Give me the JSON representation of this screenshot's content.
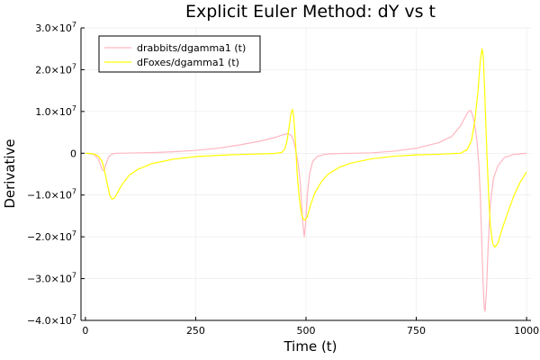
{
  "chart_data": {
    "type": "line",
    "title": "Explicit Euler Method: dY vs t",
    "xlabel": "Time (t)",
    "ylabel": "Derivative",
    "xlim": [
      -10,
      1010
    ],
    "ylim": [
      -40000000,
      30000000
    ],
    "x_ticks": [
      0,
      250,
      500,
      750,
      1000
    ],
    "x_tick_labels": [
      "0",
      "250",
      "500",
      "750",
      "1000"
    ],
    "y_ticks": [
      -40000000,
      -30000000,
      -20000000,
      -10000000,
      0,
      10000000,
      20000000,
      30000000
    ],
    "y_tick_labels": [
      {
        "mantissa": "−4.0×10",
        "exp": "7"
      },
      {
        "mantissa": "−3.0×10",
        "exp": "7"
      },
      {
        "mantissa": "−2.0×10",
        "exp": "7"
      },
      {
        "mantissa": "−1.0×10",
        "exp": "7"
      },
      {
        "mantissa": "0",
        "exp": ""
      },
      {
        "mantissa": "1.0×10",
        "exp": "7"
      },
      {
        "mantissa": "2.0×10",
        "exp": "7"
      },
      {
        "mantissa": "3.0×10",
        "exp": "7"
      }
    ],
    "grid": true,
    "legend_position": "top-left",
    "series": [
      {
        "name": "drabbits/dgamma1 (t)",
        "color": "#ffb6c1",
        "points": [
          [
            0,
            0
          ],
          [
            10,
            -100000
          ],
          [
            20,
            -300000
          ],
          [
            30,
            -1500000
          ],
          [
            38,
            -4000000
          ],
          [
            42,
            -4200000
          ],
          [
            47,
            -2500000
          ],
          [
            53,
            -800000
          ],
          [
            60,
            -200000
          ],
          [
            70,
            0
          ],
          [
            100,
            50000
          ],
          [
            150,
            150000
          ],
          [
            200,
            350000
          ],
          [
            250,
            700000
          ],
          [
            300,
            1200000
          ],
          [
            350,
            2000000
          ],
          [
            400,
            3000000
          ],
          [
            430,
            3800000
          ],
          [
            450,
            4500000
          ],
          [
            460,
            4700000
          ],
          [
            467,
            4200000
          ],
          [
            472,
            3000000
          ],
          [
            478,
            0
          ],
          [
            483,
            -3000000
          ],
          [
            487,
            -7000000
          ],
          [
            490,
            -12000000
          ],
          [
            493,
            -17000000
          ],
          [
            496,
            -20000000
          ],
          [
            499,
            -17000000
          ],
          [
            503,
            -10000000
          ],
          [
            508,
            -5000000
          ],
          [
            515,
            -2000000
          ],
          [
            525,
            -800000
          ],
          [
            540,
            -300000
          ],
          [
            560,
            -100000
          ],
          [
            600,
            0
          ],
          [
            650,
            100000
          ],
          [
            700,
            500000
          ],
          [
            750,
            1200000
          ],
          [
            800,
            2500000
          ],
          [
            830,
            4000000
          ],
          [
            850,
            6500000
          ],
          [
            860,
            8500000
          ],
          [
            868,
            10000000
          ],
          [
            873,
            10300000
          ],
          [
            878,
            9000000
          ],
          [
            883,
            6500000
          ],
          [
            888,
            2500000
          ],
          [
            892,
            -3000000
          ],
          [
            895,
            -10000000
          ],
          [
            898,
            -20000000
          ],
          [
            901,
            -30000000
          ],
          [
            904,
            -37000000
          ],
          [
            906,
            -37800000
          ],
          [
            909,
            -33000000
          ],
          [
            913,
            -22000000
          ],
          [
            918,
            -12000000
          ],
          [
            925,
            -6000000
          ],
          [
            935,
            -3000000
          ],
          [
            950,
            -1000000
          ],
          [
            970,
            -300000
          ],
          [
            990,
            -100000
          ],
          [
            1000,
            0
          ]
        ]
      },
      {
        "name": "dFoxes/dgamma1 (t)",
        "color": "#ffff00",
        "points": [
          [
            0,
            0
          ],
          [
            10,
            -50000
          ],
          [
            20,
            -200000
          ],
          [
            30,
            -700000
          ],
          [
            38,
            -2000000
          ],
          [
            44,
            -4500000
          ],
          [
            50,
            -7500000
          ],
          [
            55,
            -10000000
          ],
          [
            60,
            -11000000
          ],
          [
            65,
            -10800000
          ],
          [
            70,
            -10000000
          ],
          [
            80,
            -8000000
          ],
          [
            90,
            -6500000
          ],
          [
            100,
            -5200000
          ],
          [
            120,
            -3800000
          ],
          [
            150,
            -2500000
          ],
          [
            200,
            -1400000
          ],
          [
            250,
            -800000
          ],
          [
            300,
            -500000
          ],
          [
            350,
            -300000
          ],
          [
            400,
            -150000
          ],
          [
            430,
            -50000
          ],
          [
            445,
            200000
          ],
          [
            452,
            1000000
          ],
          [
            457,
            3000000
          ],
          [
            462,
            6500000
          ],
          [
            466,
            9500000
          ],
          [
            469,
            10500000
          ],
          [
            472,
            9000000
          ],
          [
            476,
            3000000
          ],
          [
            480,
            -5000000
          ],
          [
            485,
            -11000000
          ],
          [
            490,
            -14500000
          ],
          [
            494,
            -15800000
          ],
          [
            498,
            -16000000
          ],
          [
            503,
            -15200000
          ],
          [
            510,
            -12500000
          ],
          [
            520,
            -9500000
          ],
          [
            535,
            -6800000
          ],
          [
            550,
            -5000000
          ],
          [
            575,
            -3400000
          ],
          [
            600,
            -2400000
          ],
          [
            650,
            -1300000
          ],
          [
            700,
            -700000
          ],
          [
            750,
            -400000
          ],
          [
            800,
            -250000
          ],
          [
            850,
            0
          ],
          [
            865,
            800000
          ],
          [
            875,
            3000000
          ],
          [
            883,
            8000000
          ],
          [
            890,
            15000000
          ],
          [
            895,
            22000000
          ],
          [
            899,
            25000000
          ],
          [
            902,
            23000000
          ],
          [
            906,
            12000000
          ],
          [
            910,
            0
          ],
          [
            914,
            -10000000
          ],
          [
            918,
            -17500000
          ],
          [
            923,
            -21500000
          ],
          [
            928,
            -22500000
          ],
          [
            935,
            -21500000
          ],
          [
            945,
            -18000000
          ],
          [
            958,
            -14000000
          ],
          [
            970,
            -10500000
          ],
          [
            985,
            -7000000
          ],
          [
            1000,
            -4500000
          ]
        ]
      }
    ]
  }
}
